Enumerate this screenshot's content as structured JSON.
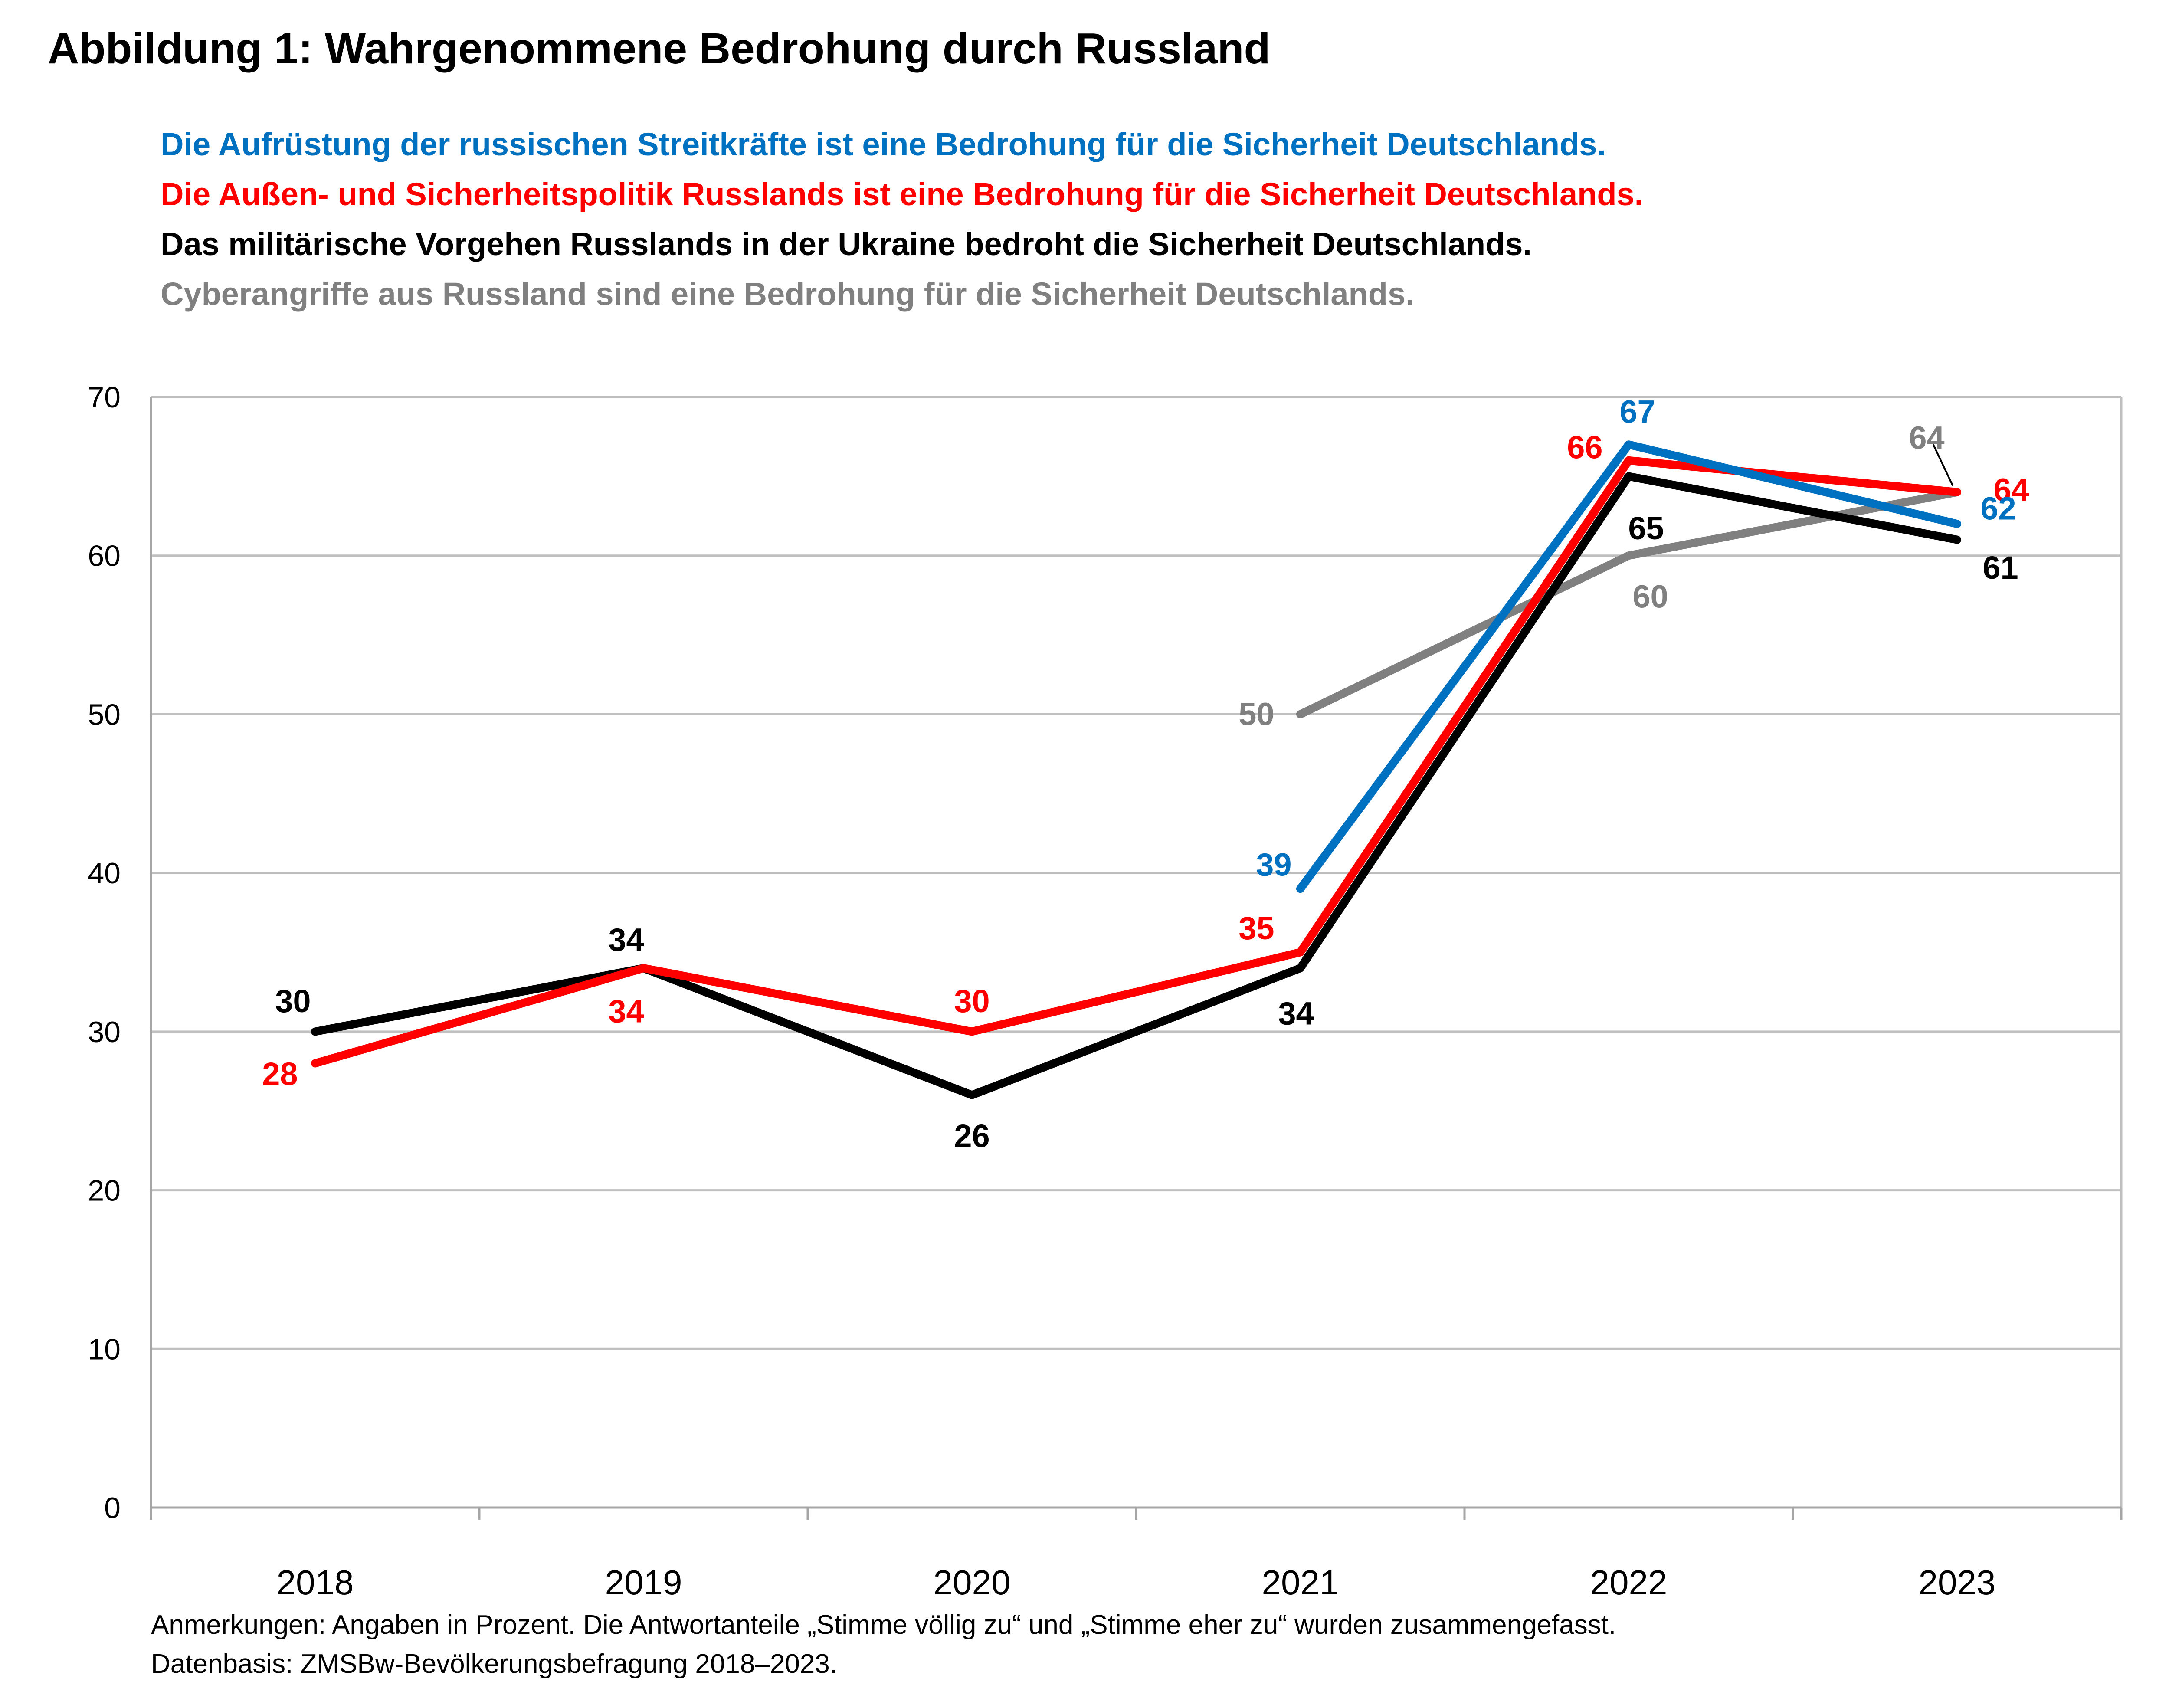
{
  "title": "Abbildung 1: Wahrgenommene Bedrohung durch Russland",
  "legend": [
    {
      "text": "Die Aufrüstung der russischen Streitkräfte ist eine Bedrohung für die Sicherheit Deutschlands.",
      "color": "#0070C0"
    },
    {
      "text": "Die Außen- und Sicherheitspolitik Russlands ist eine Bedrohung für die Sicherheit Deutschlands.",
      "color": "#FF0000"
    },
    {
      "text": "Das militärische Vorgehen Russlands in der Ukraine bedroht die Sicherheit Deutschlands.",
      "color": "#000000"
    },
    {
      "text": "Cyberangriffe aus Russland sind eine Bedrohung für die Sicherheit Deutschlands.",
      "color": "#808080"
    }
  ],
  "chart_data": {
    "type": "line",
    "x": [
      "2018",
      "2019",
      "2020",
      "2021",
      "2022",
      "2023"
    ],
    "ylim": [
      0,
      70
    ],
    "yticks": [
      0,
      10,
      20,
      30,
      40,
      50,
      60,
      70
    ],
    "grid": true,
    "series": [
      {
        "name": "Cyberangriffe aus Russland",
        "color": "#808080",
        "values": [
          null,
          null,
          null,
          50,
          60,
          64
        ]
      },
      {
        "name": "Militärisches Vorgehen in der Ukraine",
        "color": "#000000",
        "values": [
          30,
          34,
          26,
          34,
          65,
          61
        ]
      },
      {
        "name": "Außen- und Sicherheitspolitik Russlands",
        "color": "#FF0000",
        "values": [
          28,
          34,
          30,
          35,
          66,
          64
        ]
      },
      {
        "name": "Aufrüstung der russischen Streitkräfte",
        "color": "#0070C0",
        "values": [
          null,
          null,
          null,
          39,
          67,
          62
        ]
      }
    ]
  },
  "notes": [
    "Anmerkungen: Angaben in Prozent. Die Antwortanteile „Stimme völlig zu“ und „Stimme eher zu“ wurden zusammengefasst.",
    "Datenbasis: ZMSBw-Bevölkerungsbefragung 2018–2023."
  ]
}
